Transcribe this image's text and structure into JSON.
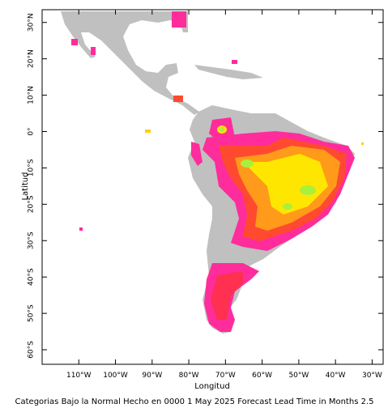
{
  "map": {
    "xlim": [
      -120,
      -27
    ],
    "ylim": [
      -64,
      33.5
    ],
    "xticks": [
      {
        "value": -110,
        "label": "110°W"
      },
      {
        "value": -100,
        "label": "100°W"
      },
      {
        "value": -90,
        "label": "90°W"
      },
      {
        "value": -80,
        "label": "80°W"
      },
      {
        "value": -70,
        "label": "70°W"
      },
      {
        "value": -60,
        "label": "60°W"
      },
      {
        "value": -50,
        "label": "50°W"
      },
      {
        "value": -40,
        "label": "40°W"
      },
      {
        "value": -30,
        "label": "30°W"
      }
    ],
    "yticks": [
      {
        "value": 30,
        "label": "30°N"
      },
      {
        "value": 20,
        "label": "20°N"
      },
      {
        "value": 10,
        "label": "10°N"
      },
      {
        "value": 0,
        "label": "0°"
      },
      {
        "value": -10,
        "label": "10°S"
      },
      {
        "value": -20,
        "label": "20°S"
      },
      {
        "value": -30,
        "label": "30°S"
      },
      {
        "value": -40,
        "label": "40°S"
      },
      {
        "value": -50,
        "label": "50°S"
      },
      {
        "value": -60,
        "label": "60°S"
      }
    ],
    "xlabel": "Longitud",
    "ylabel": "Latitud"
  },
  "caption": "Categorias Bajo la Normal Hecho en 0000 1 May 2025 Forecast Lead Time in Months 2.5"
}
